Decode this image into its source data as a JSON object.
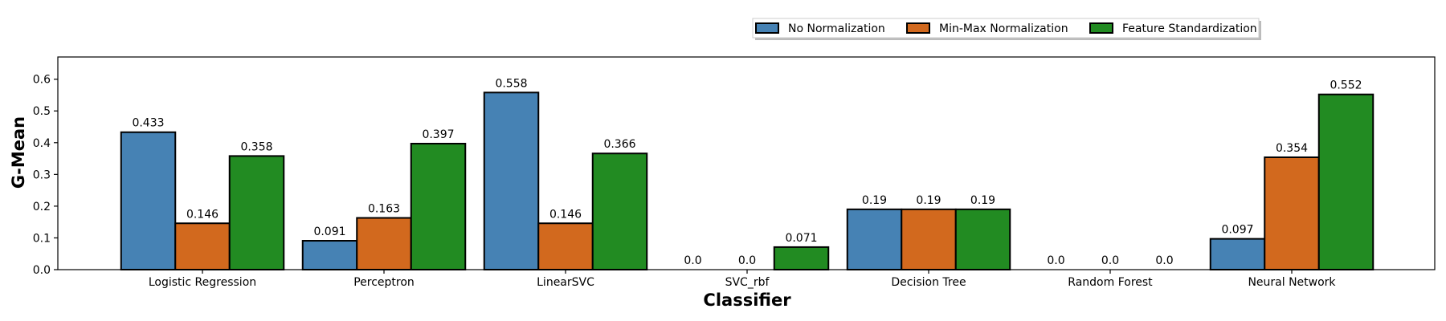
{
  "chart_data": {
    "type": "bar",
    "categories": [
      "Logistic Regression",
      "Perceptron",
      "LinearSVC",
      "SVC_rbf",
      "Decision Tree",
      "Random Forest",
      "Neural Network"
    ],
    "series": [
      {
        "name": "No Normalization",
        "color": "#4682b4",
        "values": [
          0.433,
          0.091,
          0.558,
          0.0,
          0.19,
          0.0,
          0.097
        ]
      },
      {
        "name": "Min-Max Normalization",
        "color": "#d2691e",
        "values": [
          0.146,
          0.163,
          0.146,
          0.0,
          0.19,
          0.0,
          0.354
        ]
      },
      {
        "name": "Feature Standardization",
        "color": "#228b22",
        "values": [
          0.358,
          0.397,
          0.366,
          0.071,
          0.19,
          0.0,
          0.552
        ]
      }
    ],
    "value_labels": [
      [
        "0.433",
        "0.091",
        "0.558",
        "0.0",
        "0.19",
        "0.0",
        "0.097"
      ],
      [
        "0.146",
        "0.163",
        "0.146",
        "0.0",
        "0.19",
        "0.0",
        "0.354"
      ],
      [
        "0.358",
        "0.397",
        "0.366",
        "0.071",
        "0.19",
        "0.0",
        "0.552"
      ]
    ],
    "xlabel": "Classifier",
    "ylabel": "G-Mean",
    "ylim": [
      0,
      0.67
    ],
    "yticks": [
      0.0,
      0.1,
      0.2,
      0.3,
      0.4,
      0.5,
      0.6
    ],
    "ytick_labels": [
      "0.0",
      "0.1",
      "0.2",
      "0.3",
      "0.4",
      "0.5",
      "0.6"
    ],
    "grid": false,
    "legend_position": "top-right, outside plot"
  }
}
